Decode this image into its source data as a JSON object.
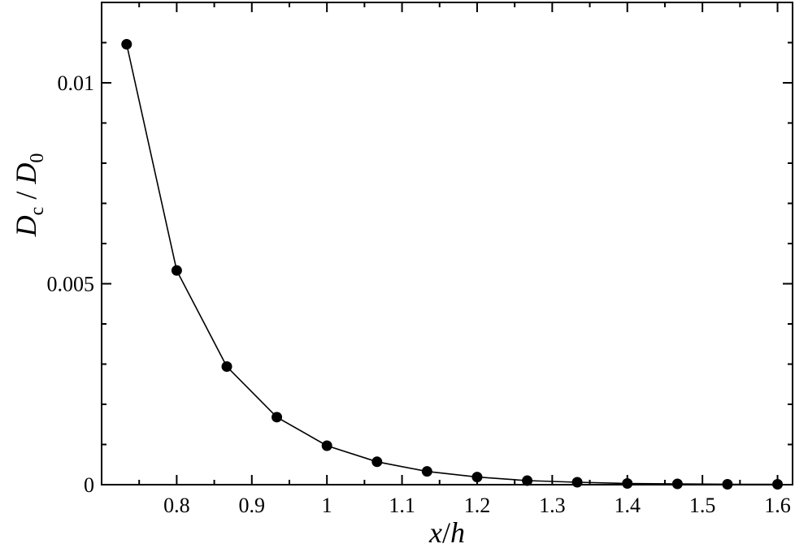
{
  "chart_data": {
    "type": "line",
    "title": "",
    "xlabel": {
      "main": "x",
      "sep": "/",
      "tail": "h"
    },
    "ylabel": {
      "d1": "D",
      "s1": "c",
      "sep": " / ",
      "d2": "D",
      "s2": "0"
    },
    "xlim": [
      0.7,
      1.62
    ],
    "ylim": [
      0,
      0.012
    ],
    "xticks": [
      {
        "v": 0.8,
        "label": "0.8"
      },
      {
        "v": 0.9,
        "label": "0.9"
      },
      {
        "v": 1.0,
        "label": "1"
      },
      {
        "v": 1.1,
        "label": "1.1"
      },
      {
        "v": 1.2,
        "label": "1.2"
      },
      {
        "v": 1.3,
        "label": "1.3"
      },
      {
        "v": 1.4,
        "label": "1.4"
      },
      {
        "v": 1.5,
        "label": "1.5"
      },
      {
        "v": 1.6,
        "label": "1.6"
      }
    ],
    "yticks": [
      {
        "v": 0,
        "label": "0"
      },
      {
        "v": 0.005,
        "label": "0.005"
      },
      {
        "v": 0.01,
        "label": "0.01"
      }
    ],
    "x_minor_step": 0.05,
    "y_minor_step": 0.001,
    "grid": false,
    "marker": "filled-circle",
    "color": "#000000",
    "series": [
      {
        "x": [
          0.7333,
          0.8,
          0.8667,
          0.9333,
          1.0,
          1.0667,
          1.1333,
          1.2,
          1.2667,
          1.3333,
          1.4,
          1.4667,
          1.5333,
          1.6
        ],
        "y": [
          0.01096,
          0.00533,
          0.00294,
          0.00168,
          0.00097,
          0.00057,
          0.00033,
          0.00019,
          0.0001,
          6e-05,
          3e-05,
          2e-05,
          1e-05,
          1e-05
        ]
      }
    ]
  }
}
